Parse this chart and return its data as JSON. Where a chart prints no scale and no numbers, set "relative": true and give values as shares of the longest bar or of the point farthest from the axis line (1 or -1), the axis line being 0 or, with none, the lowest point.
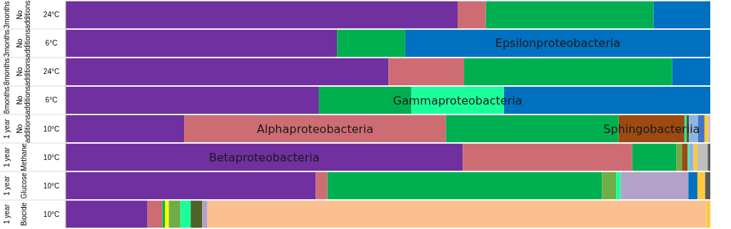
{
  "chart_data": {
    "type": "bar",
    "orientation": "horizontal",
    "stacked": true,
    "relative": true,
    "categories": [
      "3months\nNo additions\n24°C",
      "3months\nNo additions\n6°C",
      "8months\nNo additions\n24°C",
      "8months\nNo additions\n6°C",
      "1 year\nNo additions\n10°C",
      "1 year\nMethane\n10°C",
      "1 year\nGlucose\n10°C",
      "1 year\nBiocide\n10°C"
    ],
    "series": [
      {
        "name": "Betaproteobacteria",
        "color": "#7030a0",
        "values": [
          0.608,
          0.421,
          0.501,
          0.393,
          0.184,
          0.616,
          0.388,
          0.127
        ]
      },
      {
        "name": "Alphaproteobacteria",
        "color": "#cd6d73",
        "values": [
          0.044,
          null,
          0.117,
          null,
          0.406,
          0.263,
          0.018,
          0.023
        ]
      },
      {
        "color": "#00b050",
        "values": [
          0.26,
          0.106,
          0.323,
          0.143,
          0.268,
          0.068,
          0.426,
          0.004
        ]
      },
      {
        "color": "#ffff00",
        "values": [
          null,
          null,
          null,
          null,
          null,
          null,
          null,
          0.006
        ]
      },
      {
        "color": "#70ad47",
        "values": [
          null,
          null,
          null,
          null,
          null,
          0.009,
          0.022,
          0.018
        ]
      },
      {
        "name": "Sphingobacteriia",
        "color": "#9c4a12",
        "values": [
          null,
          null,
          null,
          null,
          0.102,
          0.009,
          null,
          null
        ]
      },
      {
        "name": "Gammaproteobacteria",
        "color": "#1aff9c",
        "values": [
          null,
          null,
          null,
          0.144,
          0.003,
          0.002,
          0.007,
          0.016
        ]
      },
      {
        "color": "#4f6228",
        "values": [
          null,
          null,
          null,
          null,
          0.004,
          null,
          null,
          0.018
        ]
      },
      {
        "color": "#b3a2c7",
        "values": [
          null,
          null,
          null,
          null,
          null,
          null,
          0.105,
          0.008
        ]
      },
      {
        "color": "#8eb4e3",
        "values": [
          null,
          null,
          null,
          null,
          0.014,
          0.007,
          null,
          null
        ]
      },
      {
        "color": "#4472c4",
        "values": [
          null,
          null,
          null,
          null,
          0.01,
          null,
          null,
          null
        ]
      },
      {
        "name": "Epsilonproteobacteria",
        "color": "#0070c0",
        "values": [
          0.088,
          0.473,
          0.059,
          0.32,
          null,
          null,
          0.014,
          null
        ]
      },
      {
        "color": "#fac090",
        "values": [
          null,
          null,
          null,
          null,
          null,
          null,
          null,
          0.774
        ]
      },
      {
        "color": "#ffc93c",
        "values": [
          null,
          null,
          null,
          null,
          0.006,
          0.006,
          0.012,
          0.006
        ]
      },
      {
        "color": "#bfbfbf",
        "values": [
          null,
          null,
          null,
          null,
          0.003,
          0.016,
          null,
          null
        ]
      },
      {
        "color": "#595959",
        "values": [
          null,
          null,
          null,
          null,
          null,
          0.004,
          0.008,
          null
        ]
      }
    ]
  }
}
